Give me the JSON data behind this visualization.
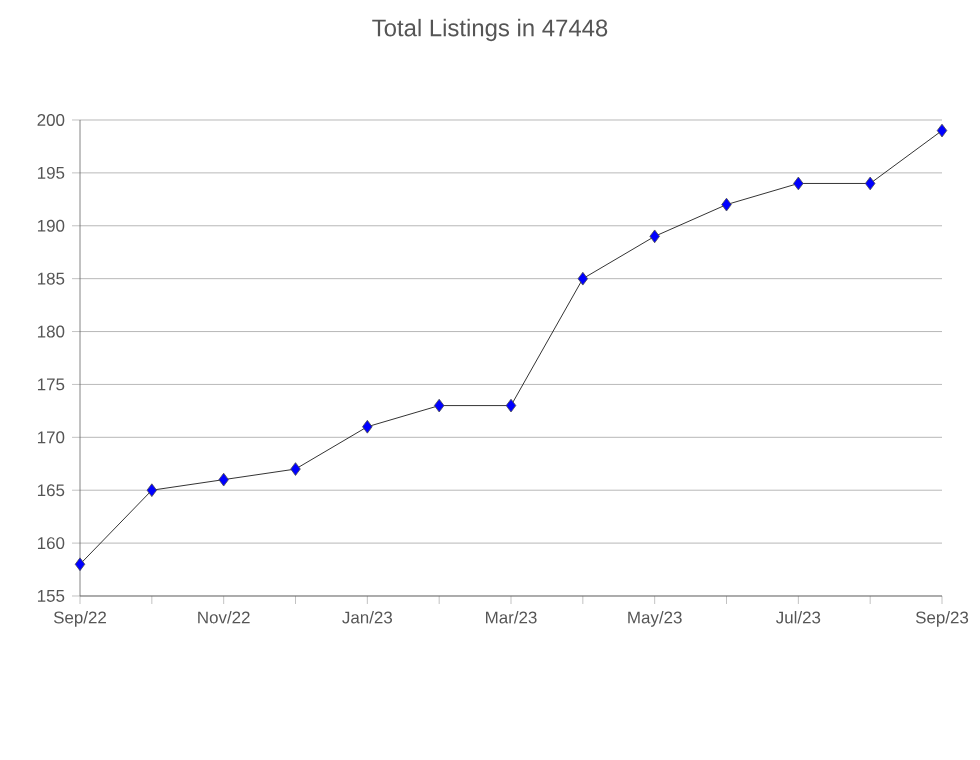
{
  "chart_data": {
    "type": "line",
    "title": "Total Listings in 47448",
    "categories": [
      "Sep/22",
      null,
      "Nov/22",
      null,
      "Jan/23",
      null,
      "Mar/23",
      null,
      "May/23",
      null,
      "Jul/23",
      null,
      "Sep/23"
    ],
    "series": [
      {
        "color": "#0000ff",
        "values": [
          158,
          165,
          166,
          167,
          171,
          173,
          173,
          185,
          189,
          192,
          194,
          194,
          199
        ]
      }
    ],
    "ylim": [
      155,
      200
    ],
    "yticks": [
      155,
      160,
      165,
      170,
      175,
      180,
      185,
      190,
      195,
      200
    ],
    "grid": "y",
    "marker": "diamond",
    "line_style": "solid"
  }
}
